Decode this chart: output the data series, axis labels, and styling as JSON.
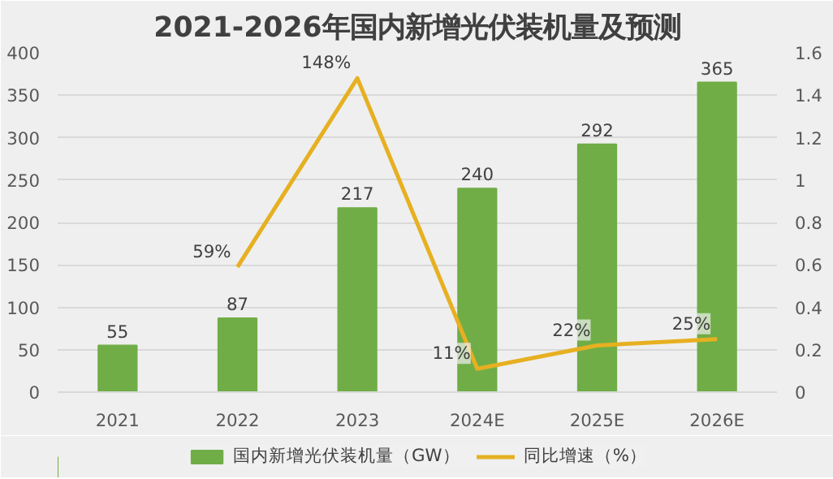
{
  "chart_data": {
    "type": "bar",
    "title": "2021-2026年国内新增光伏装机量及预测",
    "categories": [
      "2021",
      "2022",
      "2023",
      "2024E",
      "2025E",
      "2026E"
    ],
    "series": [
      {
        "name": "国内新增光伏装机量（GW）",
        "color": "#70ad47",
        "values": [
          55,
          87,
          217,
          240,
          292,
          365
        ],
        "value_labels": [
          "55",
          "87",
          "217",
          "240",
          "292",
          "365"
        ]
      },
      {
        "name": "同比增速（%）",
        "type": "line",
        "axis": "y2",
        "color": "#e6b021",
        "values": [
          null,
          0.59,
          1.48,
          0.11,
          0.22,
          0.25
        ],
        "value_labels": [
          null,
          "59%",
          "148%",
          "11%",
          "22%",
          "25%"
        ]
      }
    ],
    "ylim": [
      0,
      400
    ],
    "yticks": [
      0,
      50,
      100,
      150,
      200,
      250,
      300,
      350,
      400
    ],
    "y2lim": [
      0,
      1.6
    ],
    "y2ticks": [
      0,
      0.2,
      0.4,
      0.6,
      0.8,
      1,
      1.2,
      1.4,
      1.6
    ],
    "grid": "y",
    "legend": "bottom",
    "marker": "none"
  }
}
